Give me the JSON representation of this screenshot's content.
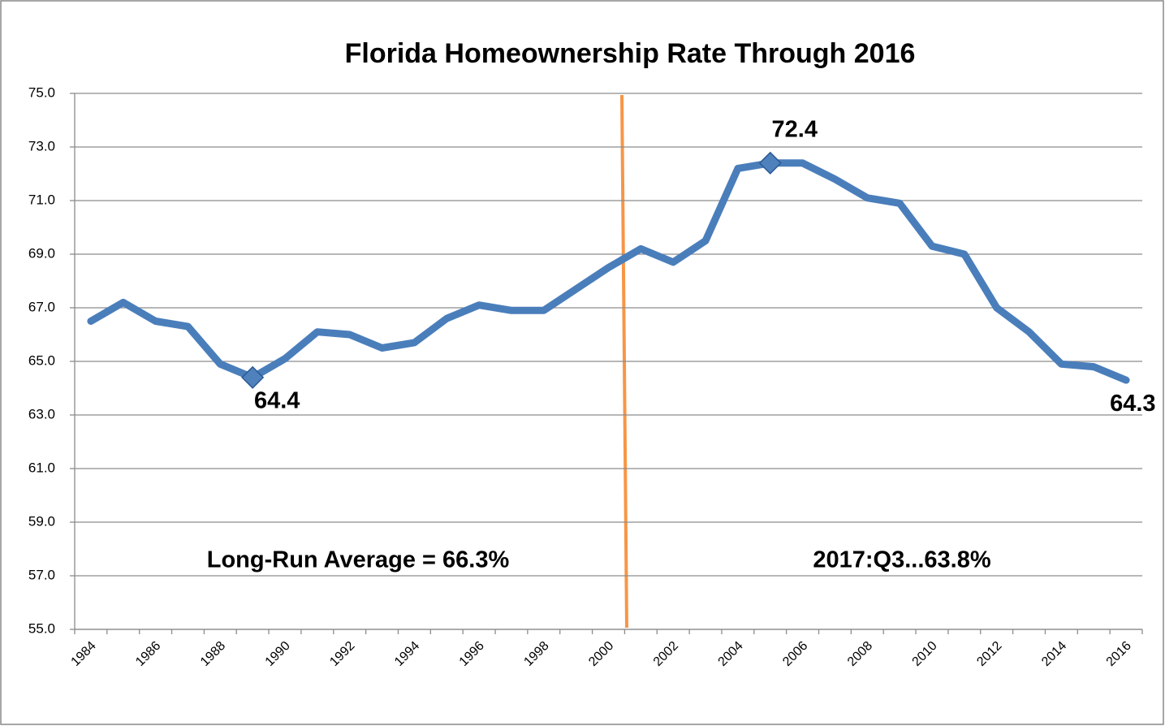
{
  "chart_data": {
    "type": "line",
    "title": "Florida Homeownership Rate Through 2016",
    "categories": [
      "1984",
      null,
      "1986",
      null,
      "1988",
      null,
      "1990",
      null,
      "1992",
      null,
      "1994",
      null,
      "1996",
      null,
      "1998",
      null,
      "2000",
      null,
      "2002",
      null,
      "2004",
      null,
      "2006",
      null,
      "2008",
      null,
      "2010",
      null,
      "2012",
      null,
      "2014",
      null,
      "2016"
    ],
    "series": [
      {
        "name": "Florida",
        "color": "#4a7ebb",
        "values": [
          66.5,
          67.2,
          66.5,
          66.3,
          64.9,
          64.4,
          65.1,
          66.1,
          66.0,
          65.5,
          65.7,
          66.6,
          67.1,
          66.9,
          66.9,
          67.7,
          68.5,
          69.2,
          68.7,
          69.5,
          72.2,
          72.4,
          72.4,
          71.8,
          71.1,
          70.9,
          69.3,
          69.0,
          67.0,
          66.1,
          64.9,
          64.8,
          64.3
        ]
      }
    ],
    "ylim": [
      55,
      75
    ],
    "yticks": [
      {
        "value": 55,
        "label": "55.0"
      },
      {
        "value": 57,
        "label": "57.0"
      },
      {
        "value": 59,
        "label": "59.0"
      },
      {
        "value": 61,
        "label": "61.0"
      },
      {
        "value": 63,
        "label": "63.0"
      },
      {
        "value": 65,
        "label": "65.0"
      },
      {
        "value": 67,
        "label": "67.0"
      },
      {
        "value": 69,
        "label": "69.0"
      },
      {
        "value": 71,
        "label": "71.0"
      },
      {
        "value": 73,
        "label": "73.0"
      },
      {
        "value": 75,
        "label": "75.0"
      }
    ],
    "grid": true,
    "marked_points": [
      5,
      21
    ],
    "labeled_points": [
      5,
      21,
      32
    ],
    "annotations": [
      "Long-Run Average = 66.3%",
      "2017:Q3...63.8%"
    ]
  }
}
